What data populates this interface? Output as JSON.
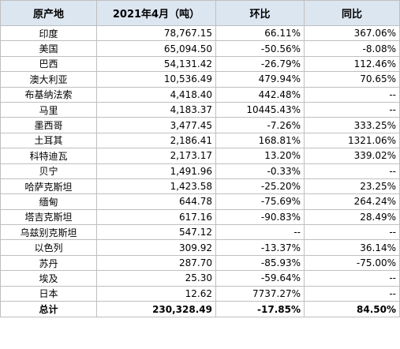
{
  "headers": [
    "原产地",
    "2021年4月（吨）",
    "环比",
    "同比"
  ],
  "rows": [
    {
      "country": "印度",
      "volume": "78,767.15",
      "mom": "66.11%",
      "yoy": "367.06%"
    },
    {
      "country": "美国",
      "volume": "65,094.50",
      "mom": "-50.56%",
      "yoy": "-8.08%"
    },
    {
      "country": "巴西",
      "volume": "54,131.42",
      "mom": "-26.79%",
      "yoy": "112.46%"
    },
    {
      "country": "澳大利亚",
      "volume": "10,536.49",
      "mom": "479.94%",
      "yoy": "70.65%"
    },
    {
      "country": "布基纳法索",
      "volume": "4,418.40",
      "mom": "442.48%",
      "yoy": "--"
    },
    {
      "country": "马里",
      "volume": "4,183.37",
      "mom": "10445.43%",
      "yoy": "--"
    },
    {
      "country": "墨西哥",
      "volume": "3,477.45",
      "mom": "-7.26%",
      "yoy": "333.25%"
    },
    {
      "country": "土耳其",
      "volume": "2,186.41",
      "mom": "168.81%",
      "yoy": "1321.06%"
    },
    {
      "country": "科特迪瓦",
      "volume": "2,173.17",
      "mom": "13.20%",
      "yoy": "339.02%"
    },
    {
      "country": "贝宁",
      "volume": "1,491.96",
      "mom": "-0.33%",
      "yoy": "--"
    },
    {
      "country": "哈萨克斯坦",
      "volume": "1,423.58",
      "mom": "-25.20%",
      "yoy": "23.25%"
    },
    {
      "country": "缅甸",
      "volume": "644.78",
      "mom": "-75.69%",
      "yoy": "264.24%"
    },
    {
      "country": "塔吉克斯坦",
      "volume": "617.16",
      "mom": "-90.83%",
      "yoy": "28.49%"
    },
    {
      "country": "乌兹别克斯坦",
      "volume": "547.12",
      "mom": "--",
      "yoy": "--"
    },
    {
      "country": "以色列",
      "volume": "309.92",
      "mom": "-13.37%",
      "yoy": "36.14%"
    },
    {
      "country": "苏丹",
      "volume": "287.70",
      "mom": "-85.93%",
      "yoy": "-75.00%"
    },
    {
      "country": "埃及",
      "volume": "25.30",
      "mom": "-59.64%",
      "yoy": "--"
    },
    {
      "country": "日本",
      "volume": "12.62",
      "mom": "7737.27%",
      "yoy": "--"
    }
  ],
  "total": {
    "country": "总计",
    "volume": "230,328.49",
    "mom": "-17.85%",
    "yoy": "84.50%"
  }
}
